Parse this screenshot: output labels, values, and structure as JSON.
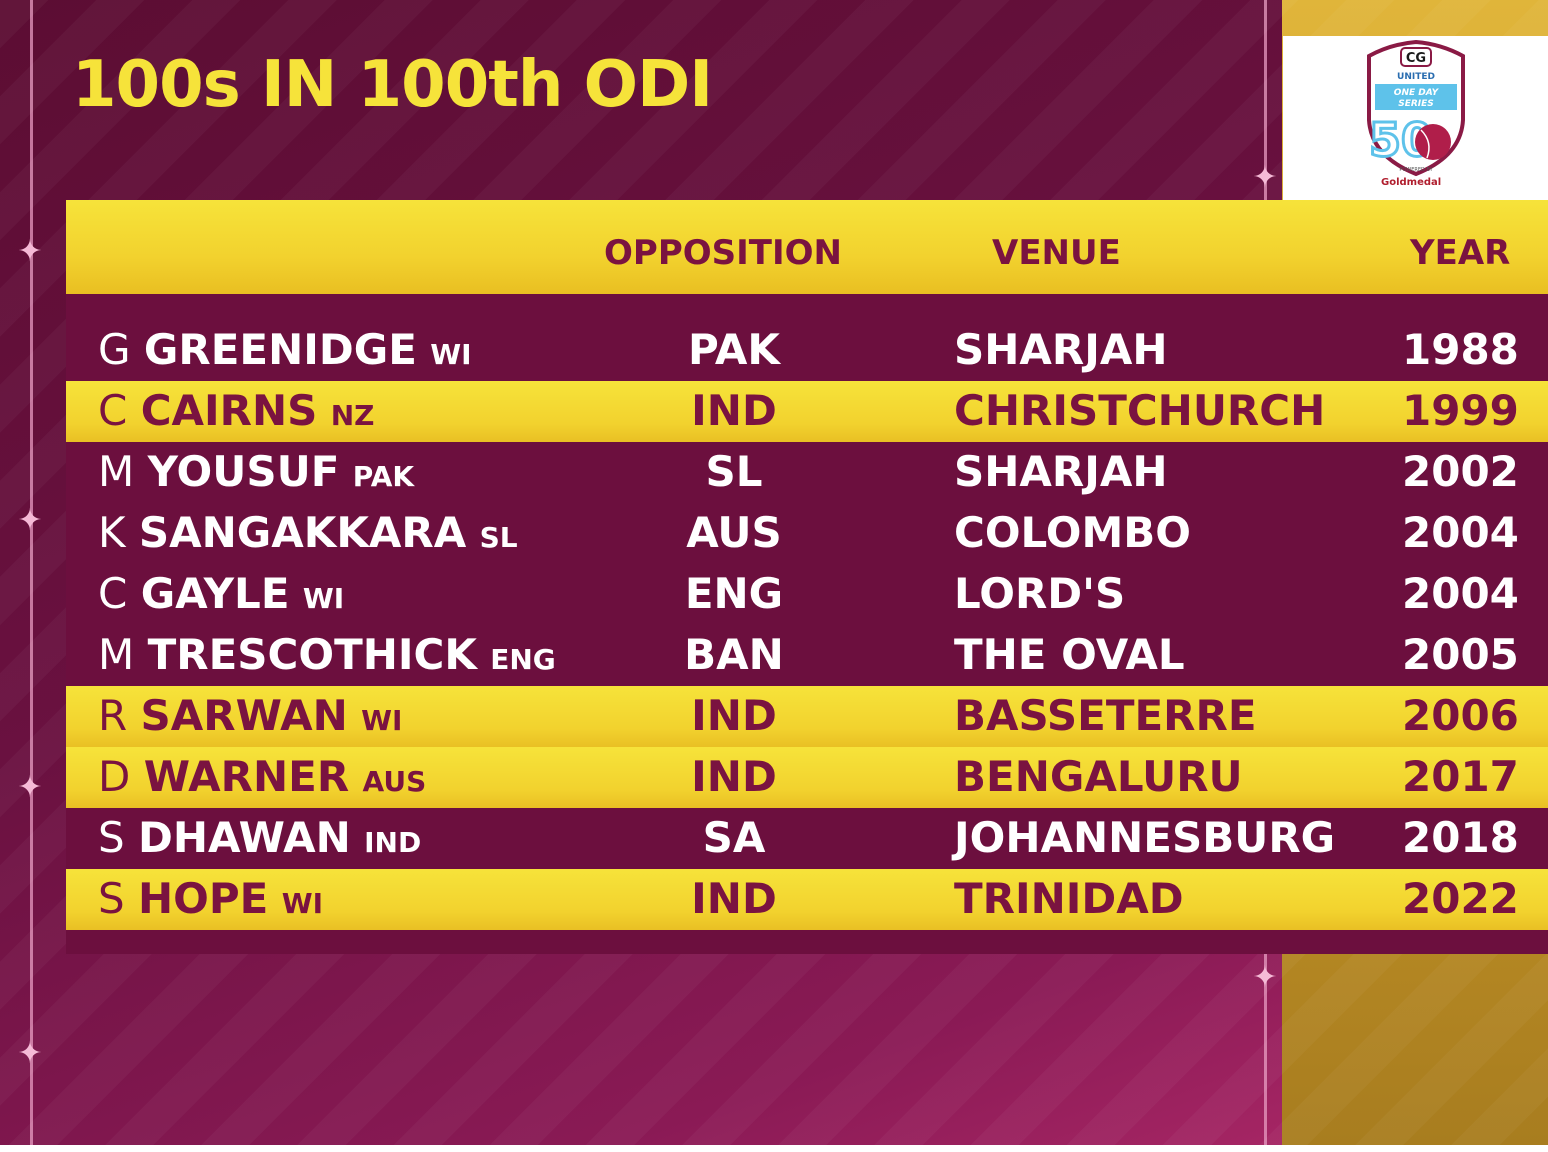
{
  "title": "100s IN 100th ODI",
  "logo": {
    "brand": "CG",
    "line1": "UNITED",
    "line2": "ONE DAY",
    "line3": "SERIES",
    "number": "50",
    "powered_by": "POWERED BY",
    "sponsor": "Goldmedal",
    "icon": "shield-logo-icon"
  },
  "columns": {
    "opposition": "OPPOSITION",
    "venue": "VENUE",
    "year": "YEAR"
  },
  "rows": [
    {
      "initial": "G",
      "surname": "GREENIDGE",
      "country": "WI",
      "opposition": "PAK",
      "venue": "SHARJAH",
      "year": "1988",
      "highlight": false
    },
    {
      "initial": "C",
      "surname": "CAIRNS",
      "country": "NZ",
      "opposition": "IND",
      "venue": "CHRISTCHURCH",
      "year": "1999",
      "highlight": true
    },
    {
      "initial": "M",
      "surname": "YOUSUF",
      "country": "PAK",
      "opposition": "SL",
      "venue": "SHARJAH",
      "year": "2002",
      "highlight": false
    },
    {
      "initial": "K",
      "surname": "SANGAKKARA",
      "country": "SL",
      "opposition": "AUS",
      "venue": "COLOMBO",
      "year": "2004",
      "highlight": false
    },
    {
      "initial": "C",
      "surname": "GAYLE",
      "country": "WI",
      "opposition": "ENG",
      "venue": "LORD'S",
      "year": "2004",
      "highlight": false
    },
    {
      "initial": "M",
      "surname": "TRESCOTHICK",
      "country": "ENG",
      "opposition": "BAN",
      "venue": "THE OVAL",
      "year": "2005",
      "highlight": false
    },
    {
      "initial": "R",
      "surname": "SARWAN",
      "country": "WI",
      "opposition": "IND",
      "venue": "BASSETERRE",
      "year": "2006",
      "highlight": true
    },
    {
      "initial": "D",
      "surname": "WARNER",
      "country": "AUS",
      "opposition": "IND",
      "venue": "BENGALURU",
      "year": "2017",
      "highlight": true
    },
    {
      "initial": "S",
      "surname": "DHAWAN",
      "country": "IND",
      "opposition": "SA",
      "venue": "JOHANNESBURG",
      "year": "2018",
      "highlight": false
    },
    {
      "initial": "S",
      "surname": "HOPE",
      "country": "WI",
      "opposition": "IND",
      "venue": "TRINIDAD",
      "year": "2022",
      "highlight": true
    }
  ],
  "colors": {
    "background": "#6a1140",
    "highlight": "#f6e33a",
    "title": "#f6e33a",
    "dark_text": "#7a1340",
    "gold_panel": "#c9982a"
  }
}
